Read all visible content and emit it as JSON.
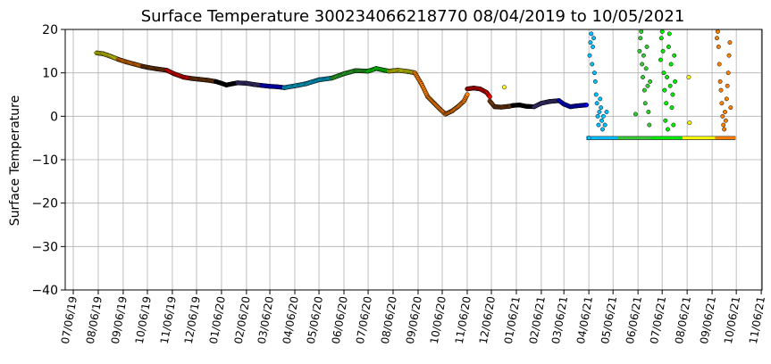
{
  "chart_data": {
    "type": "scatter",
    "title": "Surface Temperature 300234066218770  08/04/2019 to 10/05/2021",
    "xlabel": "",
    "ylabel": "Surface Temperature",
    "ylim": [
      -40,
      20
    ],
    "yticks": [
      20,
      10,
      0,
      -10,
      -20,
      -30,
      -40
    ],
    "xlim": [
      "2019-06-26",
      "2021-11-07"
    ],
    "xtick_dates": [
      "2019-07-06",
      "2019-08-06",
      "2019-09-06",
      "2019-10-06",
      "2019-11-06",
      "2019-12-06",
      "2020-01-06",
      "2020-02-06",
      "2020-03-06",
      "2020-04-06",
      "2020-05-06",
      "2020-06-06",
      "2020-07-06",
      "2020-08-06",
      "2020-09-06",
      "2020-10-06",
      "2020-11-06",
      "2020-12-06",
      "2021-01-06",
      "2021-02-06",
      "2021-03-06",
      "2021-04-06",
      "2021-05-06",
      "2021-06-06",
      "2021-07-06",
      "2021-08-06",
      "2021-09-06",
      "2021-10-06",
      "2021-11-06"
    ],
    "xtick_labels": [
      "07/06/19",
      "08/06/19",
      "09/06/19",
      "10/06/19",
      "11/06/19",
      "12/06/19",
      "01/06/20",
      "02/06/20",
      "03/06/20",
      "04/06/20",
      "05/06/20",
      "06/06/20",
      "07/06/20",
      "08/06/20",
      "09/06/20",
      "10/06/20",
      "11/06/20",
      "12/06/20",
      "01/06/21",
      "02/06/21",
      "03/06/21",
      "04/06/21",
      "05/06/21",
      "06/06/21",
      "07/06/21",
      "08/06/21",
      "09/06/21",
      "10/06/21",
      "11/06/21"
    ],
    "grid": true,
    "legend": "none",
    "segments": [
      {
        "color": "#ffff00",
        "points": [
          [
            "2019-08-04",
            14.6
          ],
          [
            "2019-08-12",
            14.4
          ],
          [
            "2019-08-20",
            13.9
          ],
          [
            "2019-08-31",
            13.1
          ]
        ]
      },
      {
        "color": "#ff8000",
        "points": [
          [
            "2019-08-31",
            13.1
          ],
          [
            "2019-09-10",
            12.5
          ],
          [
            "2019-09-20",
            12.0
          ],
          [
            "2019-09-30",
            11.5
          ]
        ]
      },
      {
        "color": "#8b4513",
        "points": [
          [
            "2019-09-30",
            11.5
          ],
          [
            "2019-10-08",
            11.2
          ],
          [
            "2019-10-18",
            10.9
          ],
          [
            "2019-10-30",
            10.6
          ]
        ]
      },
      {
        "color": "#ff0000",
        "points": [
          [
            "2019-10-30",
            10.6
          ],
          [
            "2019-11-08",
            9.8
          ],
          [
            "2019-11-20",
            9.0
          ],
          [
            "2019-11-30",
            8.7
          ]
        ]
      },
      {
        "color": "#8b4513",
        "points": [
          [
            "2019-11-30",
            8.7
          ],
          [
            "2019-12-10",
            8.5
          ],
          [
            "2019-12-20",
            8.3
          ],
          [
            "2019-12-30",
            8.0
          ]
        ]
      },
      {
        "color": "#000000",
        "points": [
          [
            "2019-12-30",
            8.0
          ],
          [
            "2020-01-06",
            7.6
          ],
          [
            "2020-01-12",
            7.2
          ],
          [
            "2020-01-20",
            7.5
          ],
          [
            "2020-01-26",
            7.7
          ]
        ]
      },
      {
        "color": "#483d8b",
        "points": [
          [
            "2020-01-26",
            7.7
          ],
          [
            "2020-02-06",
            7.6
          ],
          [
            "2020-02-16",
            7.3
          ],
          [
            "2020-02-25",
            7.1
          ]
        ]
      },
      {
        "color": "#0000ff",
        "points": [
          [
            "2020-02-25",
            7.1
          ],
          [
            "2020-03-06",
            6.9
          ],
          [
            "2020-03-15",
            6.8
          ],
          [
            "2020-03-24",
            6.6
          ]
        ]
      },
      {
        "color": "#00ccff",
        "points": [
          [
            "2020-03-24",
            6.6
          ],
          [
            "2020-04-06",
            7.0
          ],
          [
            "2020-04-20",
            7.5
          ],
          [
            "2020-05-06",
            8.4
          ],
          [
            "2020-05-22",
            8.8
          ]
        ]
      },
      {
        "color": "#33cc33",
        "points": [
          [
            "2020-05-22",
            8.8
          ],
          [
            "2020-06-06",
            9.8
          ],
          [
            "2020-06-20",
            10.5
          ],
          [
            "2020-07-06",
            10.4
          ]
        ]
      },
      {
        "color": "#00ff00",
        "points": [
          [
            "2020-07-06",
            10.4
          ],
          [
            "2020-07-16",
            11.0
          ],
          [
            "2020-07-26",
            10.6
          ],
          [
            "2020-08-01",
            10.4
          ]
        ]
      },
      {
        "color": "#ffff00",
        "points": [
          [
            "2020-08-01",
            10.4
          ],
          [
            "2020-08-12",
            10.6
          ],
          [
            "2020-08-25",
            10.3
          ],
          [
            "2020-09-02",
            10.0
          ]
        ]
      },
      {
        "color": "#ff8000",
        "points": [
          [
            "2020-09-02",
            10.0
          ],
          [
            "2020-09-10",
            7.5
          ],
          [
            "2020-09-18",
            4.5
          ],
          [
            "2020-09-26",
            3.0
          ],
          [
            "2020-10-04",
            1.5
          ],
          [
            "2020-10-10",
            0.5
          ],
          [
            "2020-10-18",
            1.2
          ],
          [
            "2020-10-26",
            2.3
          ],
          [
            "2020-11-02",
            3.5
          ],
          [
            "2020-11-06",
            5.0
          ]
        ]
      },
      {
        "color": "#ff0000",
        "points": [
          [
            "2020-11-06",
            6.3
          ],
          [
            "2020-11-14",
            6.5
          ],
          [
            "2020-11-22",
            6.3
          ],
          [
            "2020-11-30",
            5.5
          ],
          [
            "2020-12-04",
            4.5
          ]
        ]
      },
      {
        "color": "#8b4513",
        "points": [
          [
            "2020-12-04",
            3.5
          ],
          [
            "2020-12-10",
            2.2
          ],
          [
            "2020-12-18",
            2.1
          ],
          [
            "2020-12-28",
            2.3
          ],
          [
            "2021-01-02",
            2.5
          ]
        ]
      },
      {
        "color": "#000000",
        "points": [
          [
            "2021-01-02",
            2.5
          ],
          [
            "2021-01-10",
            2.6
          ],
          [
            "2021-01-18",
            2.3
          ],
          [
            "2021-01-28",
            2.2
          ]
        ]
      },
      {
        "color": "#483d8b",
        "points": [
          [
            "2021-01-28",
            2.2
          ],
          [
            "2021-02-06",
            3.0
          ],
          [
            "2021-02-16",
            3.4
          ],
          [
            "2021-02-28",
            3.6
          ]
        ]
      },
      {
        "color": "#0000ff",
        "points": [
          [
            "2021-02-28",
            3.6
          ],
          [
            "2021-03-06",
            2.8
          ],
          [
            "2021-03-14",
            2.2
          ],
          [
            "2021-03-22",
            2.4
          ],
          [
            "2021-04-03",
            2.6
          ]
        ]
      }
    ],
    "scatter_clusters": [
      {
        "color": "#ffff00",
        "points": [
          [
            "2020-12-22",
            6.7
          ]
        ]
      },
      {
        "color": "#00bfff",
        "points": [
          [
            "2021-04-06",
            -5
          ],
          [
            "2021-04-07",
            14
          ],
          [
            "2021-04-08",
            17
          ],
          [
            "2021-04-09",
            19
          ],
          [
            "2021-04-10",
            12
          ],
          [
            "2021-04-11",
            16
          ],
          [
            "2021-04-12",
            18
          ],
          [
            "2021-04-13",
            10
          ],
          [
            "2021-04-14",
            8
          ],
          [
            "2021-04-15",
            5
          ],
          [
            "2021-04-16",
            3
          ],
          [
            "2021-04-17",
            0
          ],
          [
            "2021-04-18",
            -2
          ],
          [
            "2021-04-19",
            1
          ],
          [
            "2021-04-20",
            4
          ],
          [
            "2021-04-21",
            2
          ],
          [
            "2021-04-22",
            -1
          ],
          [
            "2021-04-23",
            -3
          ],
          [
            "2021-04-24",
            0
          ],
          [
            "2021-04-26",
            -2
          ],
          [
            "2021-04-28",
            1
          ]
        ]
      },
      {
        "color": "#33cc33",
        "points": [
          [
            "2021-06-03",
            0.5
          ],
          [
            "2021-06-08",
            15
          ],
          [
            "2021-06-09",
            18
          ],
          [
            "2021-06-10",
            19.5
          ],
          [
            "2021-06-11",
            12
          ],
          [
            "2021-06-12",
            9
          ],
          [
            "2021-06-13",
            14
          ],
          [
            "2021-06-14",
            6
          ],
          [
            "2021-06-15",
            3
          ],
          [
            "2021-06-16",
            11
          ],
          [
            "2021-06-17",
            16
          ],
          [
            "2021-06-18",
            7
          ],
          [
            "2021-06-19",
            1
          ],
          [
            "2021-06-20",
            -2
          ],
          [
            "2021-06-21",
            8
          ]
        ]
      },
      {
        "color": "#00ee00",
        "points": [
          [
            "2021-07-04",
            13
          ],
          [
            "2021-07-05",
            18
          ],
          [
            "2021-07-06",
            19.5
          ],
          [
            "2021-07-07",
            15
          ],
          [
            "2021-07-08",
            10
          ],
          [
            "2021-07-09",
            6
          ],
          [
            "2021-07-10",
            -1
          ],
          [
            "2021-07-11",
            3
          ],
          [
            "2021-07-12",
            9
          ],
          [
            "2021-07-13",
            -3
          ],
          [
            "2021-07-14",
            16
          ],
          [
            "2021-07-15",
            19
          ],
          [
            "2021-07-16",
            7
          ],
          [
            "2021-07-17",
            12
          ],
          [
            "2021-07-18",
            2
          ],
          [
            "2021-07-19",
            5
          ],
          [
            "2021-07-20",
            -2
          ],
          [
            "2021-07-21",
            14
          ],
          [
            "2021-07-22",
            8
          ]
        ]
      },
      {
        "color": "#ffff00",
        "points": [
          [
            "2021-08-08",
            9
          ],
          [
            "2021-08-09",
            -1.5
          ]
        ]
      },
      {
        "color": "#ff8000",
        "points": [
          [
            "2021-09-12",
            18
          ],
          [
            "2021-09-13",
            19.5
          ],
          [
            "2021-09-14",
            16
          ],
          [
            "2021-09-15",
            12
          ],
          [
            "2021-09-16",
            8
          ],
          [
            "2021-09-17",
            6
          ],
          [
            "2021-09-18",
            3
          ],
          [
            "2021-09-19",
            0
          ],
          [
            "2021-09-20",
            -2
          ],
          [
            "2021-09-21",
            -3
          ],
          [
            "2021-09-22",
            1
          ],
          [
            "2021-09-23",
            -1
          ],
          [
            "2021-09-24",
            4
          ],
          [
            "2021-09-25",
            7
          ],
          [
            "2021-09-26",
            10
          ],
          [
            "2021-09-27",
            14
          ],
          [
            "2021-09-28",
            17
          ],
          [
            "2021-09-29",
            2
          ]
        ]
      }
    ],
    "baseline": {
      "value": -5,
      "segments": [
        {
          "color": "#00bfff",
          "from": "2021-04-03",
          "to": "2021-05-12"
        },
        {
          "color": "#33cc33",
          "from": "2021-05-12",
          "to": "2021-06-22"
        },
        {
          "color": "#00ee00",
          "from": "2021-06-22",
          "to": "2021-07-31"
        },
        {
          "color": "#ffff00",
          "from": "2021-07-31",
          "to": "2021-09-10"
        },
        {
          "color": "#ff8000",
          "from": "2021-09-10",
          "to": "2021-10-05"
        }
      ]
    }
  }
}
